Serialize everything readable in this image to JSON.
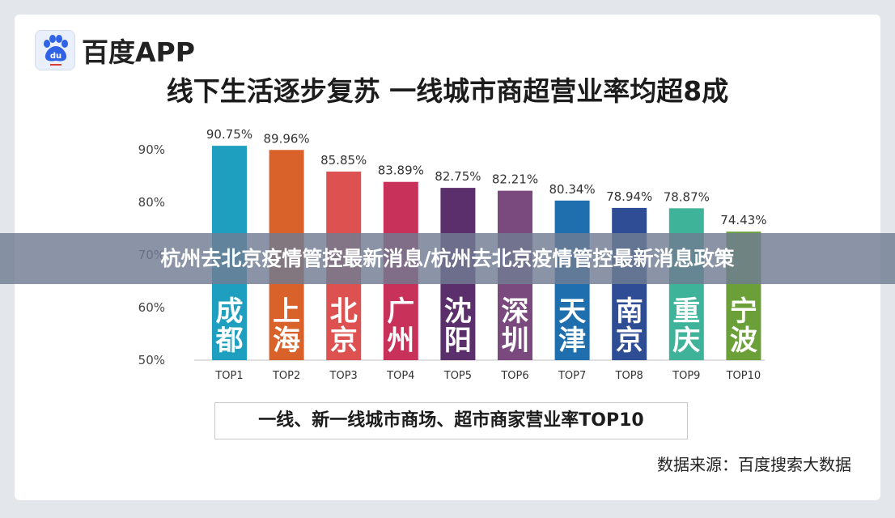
{
  "logo": {
    "text": "百度APP",
    "icon": "baidu-paw-icon",
    "brand_color": "#2f62e5"
  },
  "banner": {
    "text": "杭州去北京疫情管控最新消息/杭州去北京疫情管控最新消息政策"
  },
  "caption": "一线、新一线城市商场、超市商家营业率TOP10",
  "source": "数据来源：百度搜索大数据",
  "chart_data": {
    "type": "bar",
    "title": "线下生活逐步复苏 一线城市商超营业率均超8成",
    "xlabel": "",
    "ylabel": "",
    "ylim": [
      50,
      90
    ],
    "yticks": [
      "50%",
      "60%",
      "70%",
      "80%",
      "90%"
    ],
    "ytick_values": [
      50,
      60,
      70,
      80,
      90
    ],
    "categories": [
      "TOP1",
      "TOP2",
      "TOP3",
      "TOP4",
      "TOP5",
      "TOP6",
      "TOP7",
      "TOP8",
      "TOP9",
      "TOP10"
    ],
    "values": [
      90.75,
      89.96,
      85.85,
      83.89,
      82.75,
      82.21,
      80.34,
      78.94,
      78.87,
      74.43
    ],
    "value_labels": [
      "90.75%",
      "89.96%",
      "85.85%",
      "83.89%",
      "82.75%",
      "82.21%",
      "80.34%",
      "78.94%",
      "78.87%",
      "74.43%"
    ],
    "cities": [
      [
        "成",
        "都"
      ],
      [
        "上",
        "海"
      ],
      [
        "北",
        "京"
      ],
      [
        "广",
        "州"
      ],
      [
        "沈",
        "阳"
      ],
      [
        "深",
        "圳"
      ],
      [
        "天",
        "津"
      ],
      [
        "南",
        "京"
      ],
      [
        "重",
        "庆"
      ],
      [
        "宁",
        "波"
      ]
    ],
    "colors": [
      "#1f9fbf",
      "#d9622b",
      "#dd5250",
      "#c8315a",
      "#5a2f6b",
      "#7a4a7f",
      "#1f6fae",
      "#2f4d94",
      "#3fb29a",
      "#6aa037"
    ],
    "grid": false
  }
}
